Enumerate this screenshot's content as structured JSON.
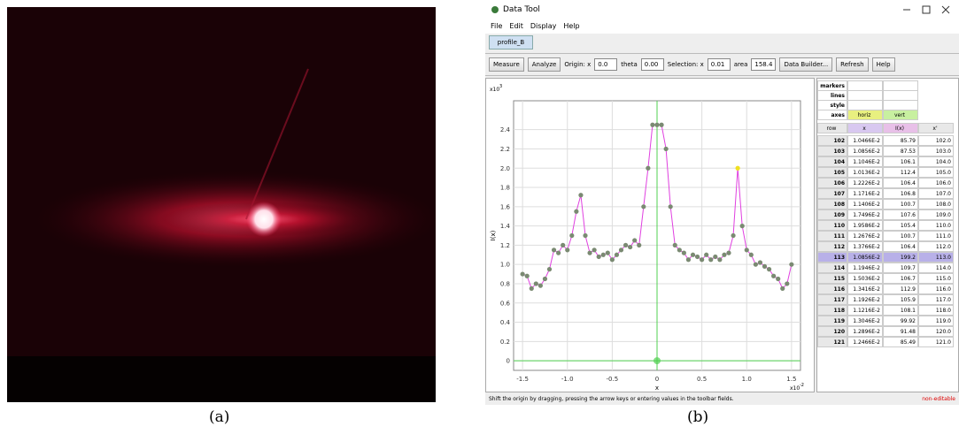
{
  "captions": [
    "(a)",
    "(b)"
  ],
  "window": {
    "title": "Data Tool",
    "menu": [
      "File",
      "Edit",
      "Display",
      "Help"
    ],
    "tab": "profile_B",
    "toolbar": [
      {
        "kind": "button",
        "text": "Measure"
      },
      {
        "kind": "button",
        "text": "Analyze"
      },
      {
        "kind": "label",
        "text": "Origin: x"
      },
      {
        "kind": "field",
        "text": "0.0"
      },
      {
        "kind": "label",
        "text": "theta"
      },
      {
        "kind": "field",
        "text": "0.00"
      },
      {
        "kind": "label",
        "text": "Selection: x"
      },
      {
        "kind": "field",
        "text": "0.01"
      },
      {
        "kind": "label",
        "text": "area"
      },
      {
        "kind": "field",
        "text": "158.4"
      },
      {
        "kind": "button",
        "text": "Data Builder..."
      },
      {
        "kind": "button",
        "text": "Refresh"
      },
      {
        "kind": "button",
        "text": "Help"
      }
    ],
    "status": "Shift the origin by dragging, pressing the arrow keys or entering values in the toolbar fields.",
    "status_flag": "non-editable"
  },
  "table": {
    "options": [
      [
        "markers",
        "",
        ""
      ],
      [
        "lines",
        "",
        ""
      ],
      [
        "style",
        "",
        ""
      ],
      [
        "axes",
        "horiz",
        "vert"
      ]
    ],
    "header": [
      "row",
      "x",
      "I(x)",
      "x'"
    ],
    "rows": [
      [
        "102",
        "1.0466E-2",
        "85.79",
        "102.0"
      ],
      [
        "103",
        "1.0856E-2",
        "87.53",
        "103.0"
      ],
      [
        "104",
        "1.1046E-2",
        "106.1",
        "104.0"
      ],
      [
        "105",
        "1.0136E-2",
        "112.4",
        "105.0"
      ],
      [
        "106",
        "1.2226E-2",
        "106.4",
        "106.0"
      ],
      [
        "107",
        "1.1716E-2",
        "106.8",
        "107.0"
      ],
      [
        "108",
        "1.1406E-2",
        "100.7",
        "108.0"
      ],
      [
        "109",
        "1.7496E-2",
        "107.6",
        "109.0"
      ],
      [
        "110",
        "1.9586E-2",
        "105.4",
        "110.0"
      ],
      [
        "111",
        "1.2676E-2",
        "100.7",
        "111.0"
      ],
      [
        "112",
        "1.3766E-2",
        "106.4",
        "112.0"
      ],
      [
        "113",
        "1.0856E-2",
        "199.2",
        "113.0"
      ],
      [
        "114",
        "1.1946E-2",
        "109.7",
        "114.0"
      ],
      [
        "115",
        "1.5036E-2",
        "106.7",
        "115.0"
      ],
      [
        "116",
        "1.3416E-2",
        "112.9",
        "116.0"
      ],
      [
        "117",
        "1.1926E-2",
        "105.9",
        "117.0"
      ],
      [
        "118",
        "1.1216E-2",
        "108.1",
        "118.0"
      ],
      [
        "119",
        "1.3046E-2",
        "99.92",
        "119.0"
      ],
      [
        "120",
        "1.2896E-2",
        "91.48",
        "120.0"
      ],
      [
        "121",
        "1.2466E-2",
        "85.49",
        "121.0"
      ]
    ],
    "selected_row": 11
  },
  "chart_data": {
    "type": "line",
    "xlabel": "x",
    "ylabel": "I(x)",
    "x_multiplier": "x10",
    "x_exponent": "-2",
    "y_multiplier": "x10",
    "y_exponent": "3",
    "x": [
      -1.5,
      -1.45,
      -1.4,
      -1.35,
      -1.3,
      -1.25,
      -1.2,
      -1.15,
      -1.1,
      -1.05,
      -1.0,
      -0.95,
      -0.9,
      -0.85,
      -0.8,
      -0.75,
      -0.7,
      -0.65,
      -0.6,
      -0.55,
      -0.5,
      -0.45,
      -0.4,
      -0.35,
      -0.3,
      -0.25,
      -0.2,
      -0.15,
      -0.1,
      -0.05,
      0,
      0.05,
      0.1,
      0.15,
      0.2,
      0.25,
      0.3,
      0.35,
      0.4,
      0.45,
      0.5,
      0.55,
      0.6,
      0.65,
      0.7,
      0.75,
      0.8,
      0.85,
      0.9,
      0.95,
      1.0,
      1.05,
      1.1,
      1.15,
      1.2,
      1.25,
      1.3,
      1.35,
      1.4,
      1.45,
      1.5
    ],
    "values": [
      0.9,
      0.88,
      0.75,
      0.8,
      0.78,
      0.85,
      0.95,
      1.15,
      1.12,
      1.2,
      1.15,
      1.3,
      1.55,
      1.72,
      1.3,
      1.12,
      1.15,
      1.08,
      1.1,
      1.12,
      1.05,
      1.1,
      1.15,
      1.2,
      1.18,
      1.25,
      1.2,
      1.6,
      2.0,
      2.45,
      2.45,
      2.45,
      2.2,
      1.6,
      1.2,
      1.15,
      1.12,
      1.05,
      1.1,
      1.08,
      1.05,
      1.1,
      1.05,
      1.08,
      1.05,
      1.1,
      1.12,
      1.3,
      2.0,
      1.4,
      1.15,
      1.1,
      1.0,
      1.02,
      0.98,
      0.95,
      0.88,
      0.85,
      0.75,
      0.8,
      1.0
    ],
    "color": "#e040e0",
    "marker_color": "#7a8a72",
    "highlight_index": 48,
    "highlight_color": "#f0e020",
    "axis_color": "#50d050",
    "xlim": [
      -1.6,
      1.6
    ],
    "ylim": [
      -0.1,
      2.7
    ],
    "xticks": [
      -1.5,
      {
        "value": -1.0,
        "label": "-1.0"
      },
      -0.5,
      0,
      0.5,
      {
        "value": 1.0,
        "label": "1.0"
      },
      1.5
    ],
    "yticks": [
      0,
      0.2,
      0.4,
      0.6,
      0.8,
      {
        "value": 1.0,
        "label": "1.0"
      },
      1.2,
      1.4,
      1.6,
      1.8,
      {
        "value": 2.0,
        "label": "2.0"
      },
      2.2,
      2.4
    ],
    "grid": true
  }
}
